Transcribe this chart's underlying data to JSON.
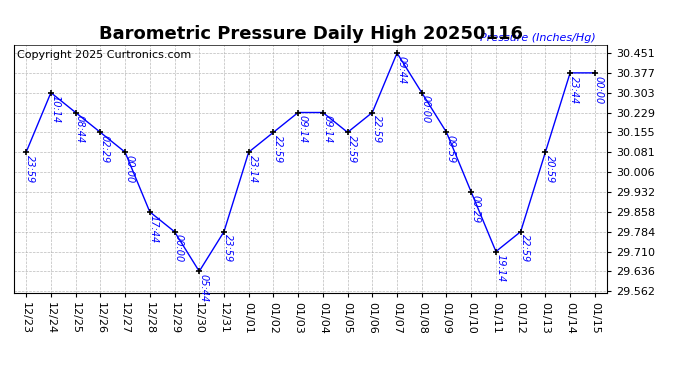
{
  "title": "Barometric Pressure Daily High 20250116",
  "copyright": "Copyright 2025 Curtronics.com",
  "ylabel": "Pressure (Inches/Hg)",
  "dates": [
    "12/23",
    "12/24",
    "12/25",
    "12/26",
    "12/27",
    "12/28",
    "12/29",
    "12/30",
    "12/31",
    "01/01",
    "01/02",
    "01/03",
    "01/04",
    "01/05",
    "01/06",
    "01/07",
    "01/08",
    "01/09",
    "01/10",
    "01/11",
    "01/12",
    "01/13",
    "01/14",
    "01/15"
  ],
  "values": [
    30.081,
    30.303,
    30.229,
    30.155,
    30.081,
    29.858,
    29.784,
    29.636,
    29.784,
    30.081,
    30.155,
    30.229,
    30.229,
    30.155,
    30.229,
    30.451,
    30.303,
    30.155,
    29.932,
    29.71,
    29.784,
    30.081,
    30.377,
    30.377
  ],
  "time_labels": [
    "23:59",
    "10:14",
    "08:44",
    "02:29",
    "00:00",
    "17:44",
    "00:00",
    "05:44",
    "23:59",
    "23:14",
    "22:59",
    "09:14",
    "09:14",
    "22:59",
    "22:59",
    "09:44",
    "00:00",
    "09:59",
    "00:29",
    "19:14",
    "22:59",
    "20:59",
    "23:44",
    "00:00"
  ],
  "ylim_min": 29.562,
  "ylim_max": 30.451,
  "yticks": [
    29.562,
    29.636,
    29.71,
    29.784,
    29.858,
    29.932,
    30.006,
    30.081,
    30.155,
    30.229,
    30.303,
    30.377,
    30.451
  ],
  "line_color": "blue",
  "label_color": "blue",
  "grid_color": "#aaaaaa",
  "bg_color": "white",
  "title_fontsize": 13,
  "tick_fontsize": 8,
  "copyright_fontsize": 8,
  "annot_fontsize": 7
}
